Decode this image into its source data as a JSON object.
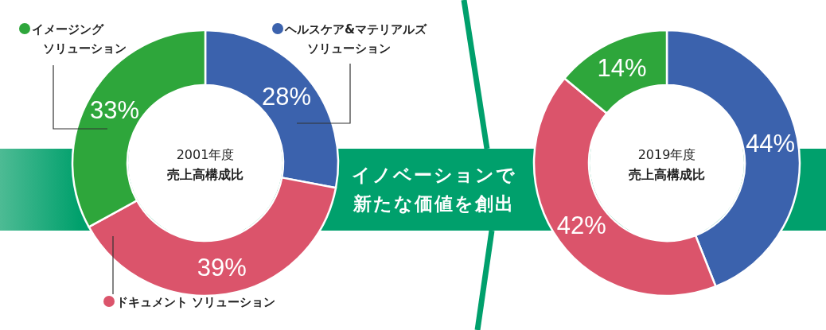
{
  "chart_data": [
    {
      "type": "donut",
      "title": "2001年度",
      "subtitle": "売上高構成比",
      "categories": [
        "ヘルスケア&マテリアルズソリューション",
        "ドキュメント ソリューション",
        "イメージングソリューション"
      ],
      "legend": "bottom right",
      "values": [
        28,
        39,
        33
      ],
      "colors": [
        "#3b62ad",
        "#db546b",
        "#2ea63b"
      ],
      "value_labels": [
        "28%",
        "39%",
        "33%"
      ],
      "annotations": [
        "イノベーションで",
        "新たな価値を創出"
      ]
    },
    {
      "type": "donut",
      "title": "2019年度",
      "subtitle": "売上高構成比",
      "categories": [
        null,
        null,
        null
      ],
      "values": [
        44,
        42,
        14
      ],
      "colors": [
        "#3b62ad",
        "#db546b",
        "#2ea63b"
      ],
      "value_labels": [
        "44%",
        "42%",
        "14%"
      ]
    }
  ]
}
